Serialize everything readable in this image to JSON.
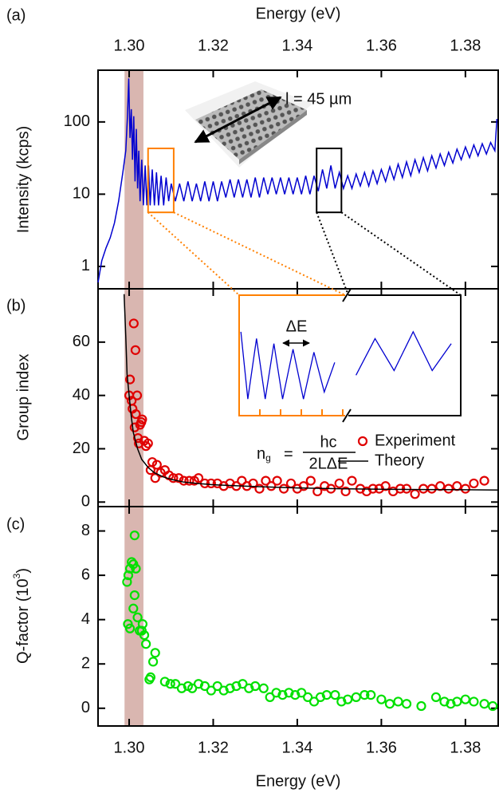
{
  "chart_data": [
    {
      "type": "line",
      "panel_label": "(a)",
      "xlabel": "Energy (eV)",
      "ylabel": "Intensity (kcps)",
      "log_scale": true,
      "color": "#0000d0",
      "xlim": [
        1.2926,
        1.3878
      ],
      "xticks": [
        {
          "value": 1.3,
          "label": "1.30"
        },
        {
          "value": 1.32,
          "label": "1.32"
        },
        {
          "value": 1.34,
          "label": "1.34"
        },
        {
          "value": 1.36,
          "label": "1.36"
        },
        {
          "value": 1.38,
          "label": "1.38"
        }
      ],
      "ylim": [
        0.49,
        520
      ],
      "yticks": [
        1,
        10,
        100
      ],
      "shaded_region": [
        1.2989,
        1.3034
      ],
      "shaded_color": "#d9b6b0",
      "zoom_boxes": [
        {
          "x": [
            1.3045,
            1.3106
          ],
          "y": [
            5.6,
            43
          ],
          "color": "#ff8000"
        },
        {
          "x": [
            1.3446,
            1.3505
          ],
          "y": [
            5.6,
            43
          ],
          "color": "#000000"
        }
      ],
      "annotation": "l = 45 µm",
      "x": [
        1.2926,
        1.2935,
        1.2945,
        1.2955,
        1.2965,
        1.2975,
        1.2985,
        1.2992,
        1.2996,
        1.2999,
        1.3002,
        1.3005,
        1.3008,
        1.3011,
        1.3014,
        1.3017,
        1.302,
        1.3023,
        1.3026,
        1.303,
        1.3034,
        1.3038,
        1.3042,
        1.3046,
        1.305,
        1.3055,
        1.306,
        1.3065,
        1.307,
        1.3076,
        1.3082,
        1.3088,
        1.3094,
        1.31,
        1.311,
        1.312,
        1.313,
        1.314,
        1.315,
        1.316,
        1.317,
        1.318,
        1.319,
        1.32,
        1.321,
        1.322,
        1.323,
        1.324,
        1.325,
        1.326,
        1.327,
        1.328,
        1.329,
        1.33,
        1.331,
        1.332,
        1.333,
        1.334,
        1.335,
        1.336,
        1.337,
        1.338,
        1.339,
        1.34,
        1.341,
        1.342,
        1.343,
        1.344,
        1.345,
        1.346,
        1.347,
        1.348,
        1.349,
        1.35,
        1.351,
        1.352,
        1.353,
        1.354,
        1.355,
        1.356,
        1.357,
        1.358,
        1.359,
        1.36,
        1.361,
        1.362,
        1.363,
        1.364,
        1.365,
        1.366,
        1.367,
        1.368,
        1.369,
        1.37,
        1.371,
        1.372,
        1.373,
        1.374,
        1.375,
        1.376,
        1.377,
        1.378,
        1.379,
        1.38,
        1.381,
        1.382,
        1.383,
        1.384,
        1.385,
        1.386,
        1.387,
        1.3875
      ],
      "values": [
        0.6,
        1.2,
        1.8,
        2.5,
        4,
        8,
        20,
        40,
        120,
        400,
        60,
        150,
        30,
        120,
        15,
        80,
        12,
        40,
        8,
        30,
        7,
        25,
        7,
        25,
        7,
        22,
        7,
        20,
        7,
        18,
        7,
        17,
        8,
        14,
        8,
        14,
        8,
        15,
        8,
        14,
        8,
        15,
        8,
        15,
        8,
        15,
        9,
        16,
        9,
        16,
        9,
        16,
        9,
        17,
        9,
        17,
        10,
        17,
        10,
        17,
        10,
        17,
        10,
        17,
        10,
        18,
        10,
        18,
        11,
        22,
        12,
        25,
        12,
        20,
        12,
        18,
        12,
        19,
        13,
        20,
        13,
        21,
        14,
        22,
        15,
        24,
        16,
        26,
        17,
        28,
        18,
        30,
        20,
        32,
        21,
        34,
        23,
        36,
        25,
        38,
        27,
        42,
        30,
        45,
        32,
        48,
        34,
        50,
        36,
        52,
        40,
        110
      ]
    },
    {
      "type": "scatter",
      "panel_label": "(b)",
      "ylabel": "Group index",
      "xlim": [
        1.2926,
        1.3878
      ],
      "xticks": [
        1.3,
        1.32,
        1.34,
        1.36,
        1.38
      ],
      "ylim": [
        -1.7,
        80
      ],
      "yticks": [
        0,
        20,
        40,
        60
      ],
      "inset_label": "ΔE",
      "formula": {
        "lhs": "n",
        "lhs_sub": "g",
        "eq": "=",
        "numerator": "hc",
        "denominator": "2LΔE"
      },
      "series": [
        {
          "name": "Experiment",
          "style": "marker",
          "color": "#e00000",
          "x": [
            1.3002,
            1.3,
            1.3006,
            1.3008,
            1.3011,
            1.3015,
            1.3013,
            1.3019,
            1.3016,
            1.3021,
            1.3023,
            1.3026,
            1.3029,
            1.3031,
            1.3036,
            1.304,
            1.3045,
            1.3051,
            1.3055,
            1.3062,
            1.3066,
            1.3075,
            1.3085,
            1.3095,
            1.3105,
            1.3118,
            1.313,
            1.3143,
            1.3155,
            1.3165,
            1.318,
            1.3195,
            1.321,
            1.3225,
            1.324,
            1.3255,
            1.3268,
            1.328,
            1.3295,
            1.331,
            1.3325,
            1.3338,
            1.3352,
            1.3368,
            1.3385,
            1.34,
            1.3415,
            1.3432,
            1.3448,
            1.3465,
            1.348,
            1.35,
            1.3515,
            1.353,
            1.355,
            1.3565,
            1.358,
            1.3595,
            1.361,
            1.3628,
            1.3645,
            1.366,
            1.368,
            1.37,
            1.372,
            1.374,
            1.376,
            1.378,
            1.38,
            1.382,
            1.3845
          ],
          "values": [
            46,
            40,
            38,
            35,
            67,
            57,
            28,
            40,
            33,
            24,
            22,
            29,
            30,
            31,
            23,
            21,
            22,
            12,
            15,
            9,
            14,
            11,
            12,
            10,
            9,
            9,
            8,
            8,
            8,
            9,
            7,
            7,
            7,
            6,
            7,
            6,
            8,
            6,
            7,
            5,
            8,
            6,
            8,
            5,
            7,
            5,
            6,
            8,
            4,
            6,
            5,
            7,
            4,
            8,
            5,
            4,
            5,
            5,
            6,
            4,
            5,
            5,
            3,
            5,
            5,
            6,
            5,
            6,
            5,
            7,
            8
          ]
        },
        {
          "name": "Theory",
          "style": "line",
          "color": "#000000",
          "x": [
            1.2988,
            1.2992,
            1.2995,
            1.3,
            1.3005,
            1.301,
            1.302,
            1.303,
            1.3045,
            1.306,
            1.308,
            1.31,
            1.313,
            1.316,
            1.32,
            1.33,
            1.34,
            1.35,
            1.36,
            1.37,
            1.38,
            1.3878
          ],
          "values": [
            78,
            62,
            48,
            40,
            32,
            26,
            20,
            16,
            13,
            11,
            9.5,
            8.5,
            7.5,
            7,
            6.5,
            5.8,
            5.3,
            5,
            4.8,
            4.7,
            4.6,
            4.5
          ]
        }
      ]
    },
    {
      "type": "scatter",
      "panel_label": "(c)",
      "xlabel": "Energy (eV)",
      "ylabel": "Q-factor (10",
      "ylabel_sup": "3",
      "ylabel_end": ")",
      "xlim": [
        1.2926,
        1.3878
      ],
      "xticks": [
        {
          "value": 1.3,
          "label": "1.30"
        },
        {
          "value": 1.32,
          "label": "1.32"
        },
        {
          "value": 1.34,
          "label": "1.34"
        },
        {
          "value": 1.36,
          "label": "1.36"
        },
        {
          "value": 1.38,
          "label": "1.38"
        }
      ],
      "ylim": [
        -0.8,
        9.1
      ],
      "yticks": [
        0,
        2,
        4,
        6,
        8
      ],
      "series": [
        {
          "style": "marker",
          "color": "#00e000",
          "x": [
            1.2995,
            1.2998,
            1.3002,
            1.3006,
            1.301,
            1.3016,
            1.3013,
            1.2997,
            1.3002,
            1.301,
            1.3013,
            1.302,
            1.3025,
            1.303,
            1.3032,
            1.3036,
            1.304,
            1.3048,
            1.3051,
            1.3057,
            1.3062,
            1.3085,
            1.3098,
            1.311,
            1.3125,
            1.314,
            1.315,
            1.3165,
            1.318,
            1.3195,
            1.321,
            1.3225,
            1.324,
            1.3255,
            1.327,
            1.3285,
            1.33,
            1.332,
            1.3335,
            1.335,
            1.3365,
            1.338,
            1.3395,
            1.341,
            1.3425,
            1.344,
            1.3455,
            1.347,
            1.349,
            1.3505,
            1.352,
            1.354,
            1.356,
            1.3575,
            1.36,
            1.362,
            1.364,
            1.366,
            1.3695,
            1.373,
            1.375,
            1.3765,
            1.378,
            1.38,
            1.382,
            1.3845,
            1.3865
          ],
          "values": [
            5.7,
            6,
            6.3,
            6.6,
            6.5,
            6.3,
            7.8,
            3.8,
            3.6,
            4.5,
            5.1,
            4.1,
            3.5,
            3.5,
            3.8,
            3.3,
            2.9,
            1.3,
            1.4,
            2.1,
            2.5,
            1.2,
            1.1,
            1.1,
            0.9,
            1,
            0.9,
            1.1,
            1,
            0.8,
            1,
            0.8,
            0.9,
            1,
            1.1,
            0.9,
            1,
            0.9,
            0.5,
            0.7,
            0.6,
            0.7,
            0.6,
            0.7,
            0.5,
            0.3,
            0.5,
            0.6,
            0.6,
            0.3,
            0.4,
            0.5,
            0.6,
            0.6,
            0.4,
            0.2,
            0.3,
            0.2,
            0.1,
            0.5,
            0.3,
            0.2,
            0.3,
            0.4,
            0.3,
            0.2,
            0.1
          ]
        }
      ]
    }
  ]
}
